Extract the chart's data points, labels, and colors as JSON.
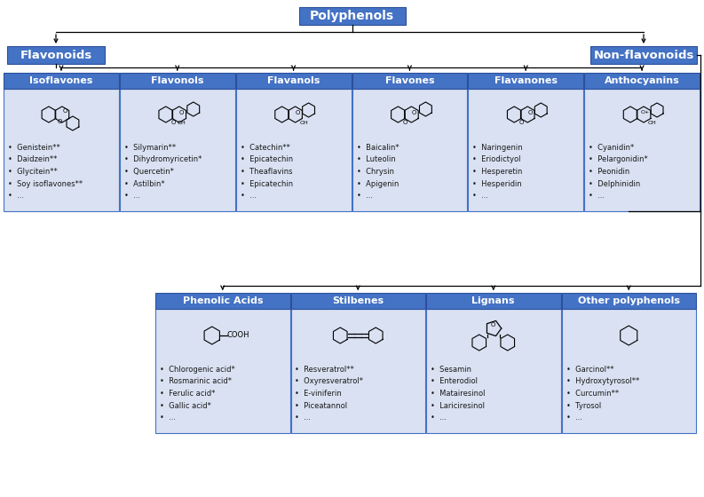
{
  "bg_color": "#ffffff",
  "box_dark": "#4472C4",
  "box_mid": "#4472C4",
  "box_light_bg": "#D9E1F2",
  "box_light_border": "#4472C4",
  "text_white": "#ffffff",
  "text_dark": "#1a1a1a",
  "title": "Polyphenols",
  "flavonoid_label": "Flavonoids",
  "nonflavonoid_label": "Non-flavonoids",
  "flavonoid_subs": [
    "Isoflavones",
    "Flavonols",
    "Flavanols",
    "Flavones",
    "Flavanones",
    "Anthocyanins"
  ],
  "nonflavonoid_subs": [
    "Phenolic Acids",
    "Stilbenes",
    "Lignans",
    "Other polyphenols"
  ],
  "flavonoid_items": [
    [
      "Genistein**",
      "Daidzein**",
      "Glycitein**",
      "Soy isoflavones**",
      "..."
    ],
    [
      "Silymarin**",
      "Dihydromyricetin*",
      "Quercetin*",
      "Astilbin*",
      "..."
    ],
    [
      "Catechin**",
      "Epicatechin",
      "Theaflavins",
      "Epicatechin",
      "..."
    ],
    [
      "Baicalin*",
      "Luteolin",
      "Chrysin",
      "Apigenin",
      "..."
    ],
    [
      "Naringenin",
      "Eriodictyol",
      "Hesperetin",
      "Hesperidin",
      "..."
    ],
    [
      "Cyanidin*",
      "Pelargonidin*",
      "Peonidin",
      "Delphinidin",
      "..."
    ]
  ],
  "nonflavonoid_items": [
    [
      "Chlorogenic acid*",
      "Rosmarinic acid*",
      "Ferulic acid*",
      "Gallic acid*",
      "..."
    ],
    [
      "Resveratrol**",
      "Oxyresveratrol*",
      "E-viniferin",
      "Piceatannol",
      "..."
    ],
    [
      "Sesamin",
      "Enterodiol",
      "Matairesinol",
      "Lariciresinol",
      "..."
    ],
    [
      "Garcinol**",
      "Hydroxytyrosol**",
      "Curcumin**",
      "Tyrosol",
      "..."
    ]
  ],
  "figw": 7.93,
  "figh": 5.6,
  "dpi": 100
}
